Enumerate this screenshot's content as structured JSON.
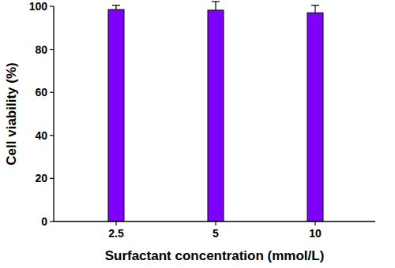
{
  "chart_data": {
    "type": "bar",
    "x_label": "Surfactant concentration (mmol/L)",
    "y_label": "Cell viability (%)",
    "categories": [
      "2.5",
      "5",
      "10"
    ],
    "values": [
      98.5,
      98.2,
      97
    ],
    "errors": [
      2,
      4,
      3.5
    ],
    "color": "#8000ff",
    "ylim": [
      0,
      100
    ],
    "yticks": [
      0,
      20,
      40,
      60,
      80,
      100
    ],
    "grid": false
  }
}
